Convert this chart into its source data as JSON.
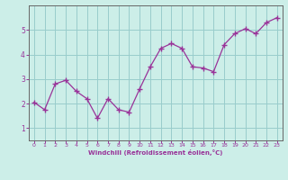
{
  "x": [
    0,
    1,
    2,
    3,
    4,
    5,
    6,
    7,
    8,
    9,
    10,
    11,
    12,
    13,
    14,
    15,
    16,
    17,
    18,
    19,
    20,
    21,
    22,
    23
  ],
  "y": [
    2.05,
    1.75,
    2.8,
    2.95,
    2.5,
    2.2,
    1.4,
    2.2,
    1.75,
    1.65,
    2.6,
    3.5,
    4.25,
    4.45,
    4.25,
    3.5,
    3.45,
    3.3,
    4.4,
    4.85,
    5.05,
    4.85,
    5.3,
    5.5
  ],
  "line_color": "#993399",
  "marker": "+",
  "marker_size": 4,
  "marker_linewidth": 1.0,
  "background_color": "#cceee8",
  "grid_color": "#99cccc",
  "xlabel": "Windchill (Refroidissement éolien,°C)",
  "ylabel": "",
  "xlim": [
    -0.5,
    23.5
  ],
  "ylim": [
    0.5,
    6.0
  ],
  "yticks": [
    1,
    2,
    3,
    4,
    5
  ],
  "xticks": [
    0,
    1,
    2,
    3,
    4,
    5,
    6,
    7,
    8,
    9,
    10,
    11,
    12,
    13,
    14,
    15,
    16,
    17,
    18,
    19,
    20,
    21,
    22,
    23
  ],
  "tick_color": "#993399",
  "label_color": "#993399",
  "axis_color": "#993399",
  "spine_color": "#666666"
}
